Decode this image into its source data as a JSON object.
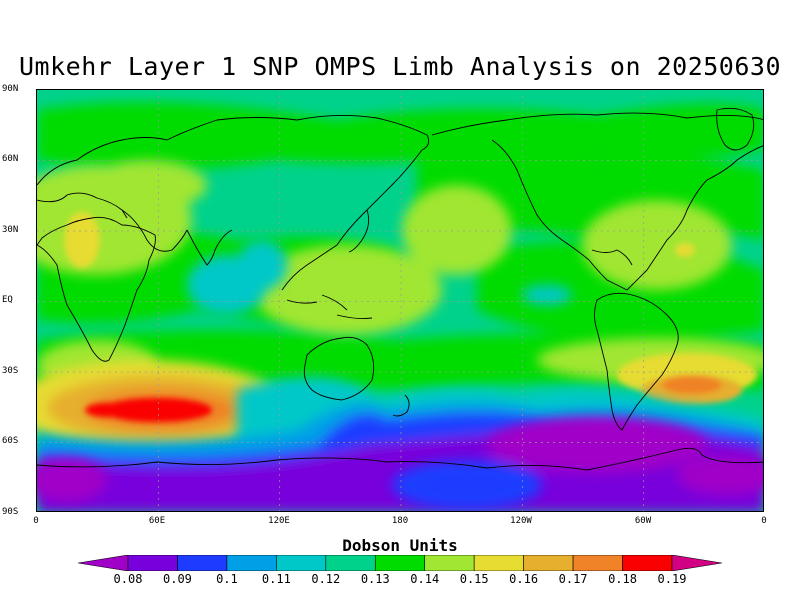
{
  "title": "Umkehr Layer 1 SNP OMPS Limb Analysis on 20250630",
  "lat_ticks": [
    "90N",
    "60N",
    "30N",
    "EQ",
    "30S",
    "60S",
    "90S"
  ],
  "lon_ticks": [
    "0",
    "60E",
    "120E",
    "180",
    "120W",
    "60W",
    "0"
  ],
  "colorbar": {
    "title": "Dobson Units",
    "labels": [
      "0.08",
      "0.09",
      "0.1",
      "0.11",
      "0.12",
      "0.13",
      "0.14",
      "0.15",
      "0.16",
      "0.17",
      "0.18",
      "0.19"
    ],
    "colors": [
      "#a000c8",
      "#7800dc",
      "#1e3cff",
      "#00a0e6",
      "#00c8c8",
      "#00d28c",
      "#00dc00",
      "#a0e632",
      "#e6dc32",
      "#e6af2d",
      "#f08228",
      "#fa0000",
      "#d20082"
    ]
  }
}
